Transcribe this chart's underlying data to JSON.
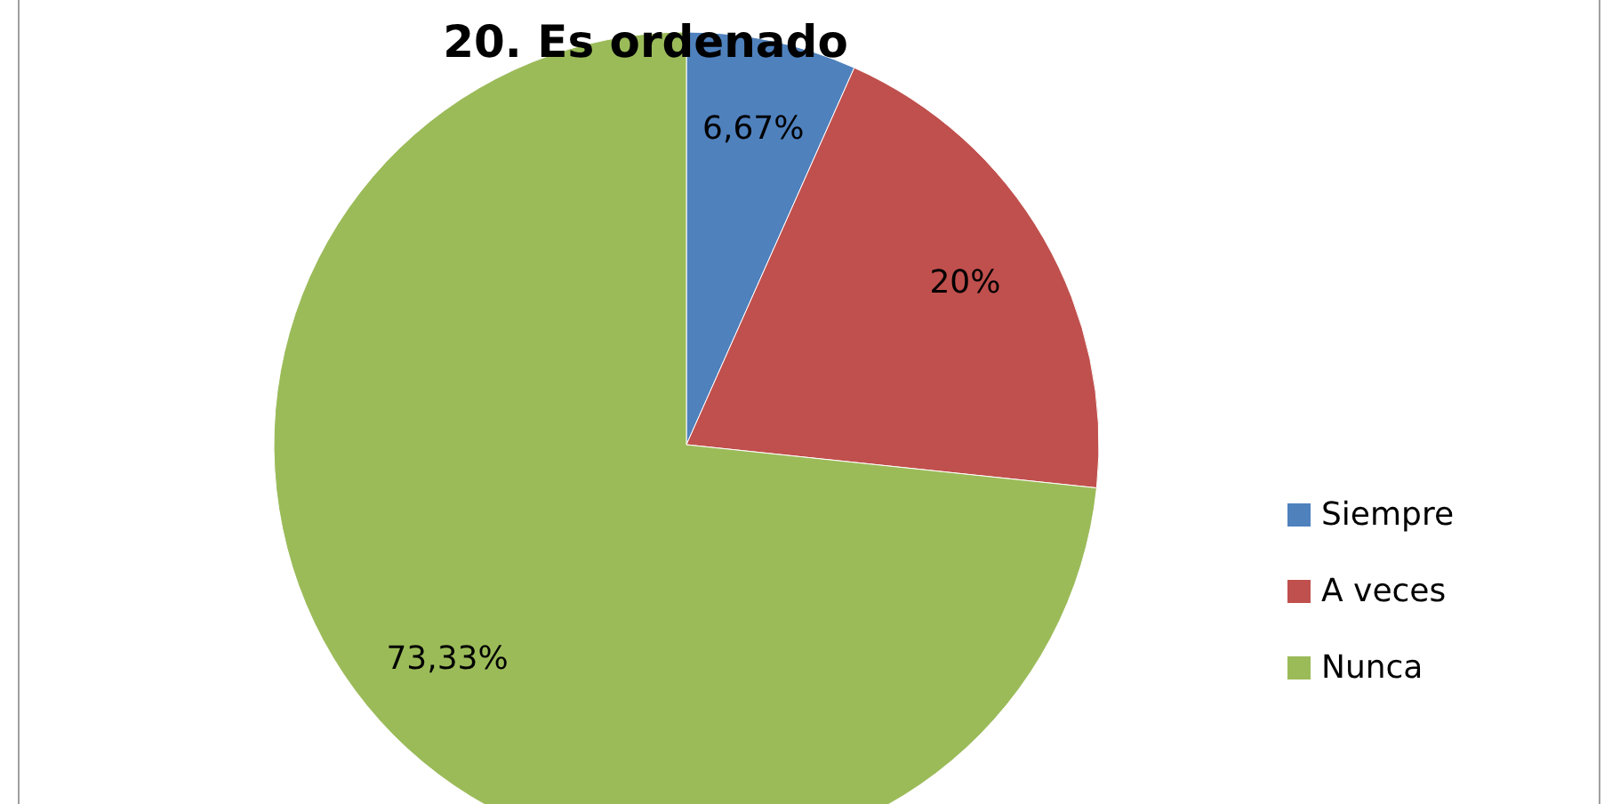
{
  "chart_data": {
    "type": "pie",
    "title": "20. Es ordenado",
    "categories": [
      "Siempre",
      "A veces",
      "Nunca"
    ],
    "values": [
      6.67,
      20,
      73.33
    ],
    "colors": [
      "#4f81bd",
      "#c0504d",
      "#9bbb59"
    ],
    "value_labels": [
      "6,67%",
      "20%",
      "73,33%"
    ],
    "legend": "right"
  }
}
